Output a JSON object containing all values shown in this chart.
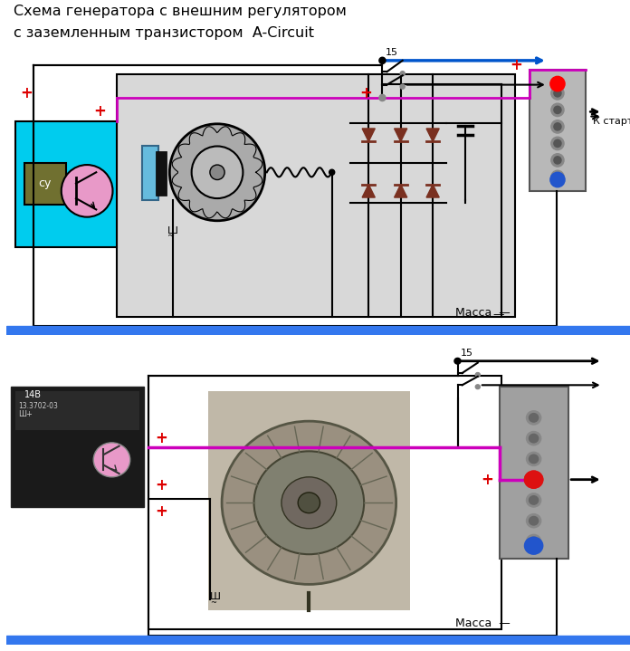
{
  "title_line1": "Схема генератора с внешним регулятором",
  "title_line2": "с заземленным транзистором  A-Circuit",
  "title_fontsize": 11.5,
  "bg_color": "#ffffff",
  "cyan_box_color": "#00ccee",
  "gray_inner_color": "#d8d8d8",
  "pink_color": "#e899c8",
  "olive_color": "#707030",
  "brown_diode": "#7a3020",
  "blue_line": "#0055cc",
  "magenta_line": "#cc00bb",
  "red_plus": "#dd0000",
  "blue_bar": "#3377ee",
  "label_massa": "Масса  —",
  "label_15": "15",
  "label_k_starter": "К стартеру",
  "label_sh": "Ш",
  "label_cy": "су",
  "lw": 1.5
}
